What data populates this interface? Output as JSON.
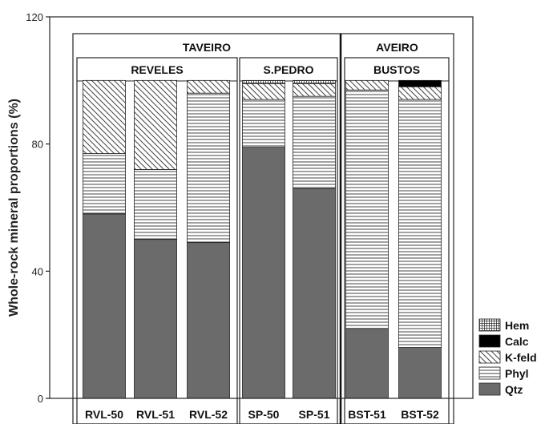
{
  "chart_data": {
    "type": "bar",
    "stacked": true,
    "ylabel": "Whole-rock mineral proportions (%)",
    "ylim": [
      0,
      120
    ],
    "yticks": [
      "0",
      "40",
      "80",
      "120"
    ],
    "grid": false,
    "legend_position": "bottom-right",
    "categories": [
      "RVL-50",
      "RVL-51",
      "RVL-52",
      "SP-50",
      "SP-51",
      "BST-51",
      "BST-52"
    ],
    "series": [
      {
        "name": "Qtz",
        "values": [
          58,
          50,
          49,
          79,
          66,
          22,
          16
        ],
        "color": "#6b6b6b",
        "pattern": "solid"
      },
      {
        "name": "Phyl",
        "values": [
          19,
          22,
          47,
          15,
          29,
          75,
          78
        ],
        "color": "#ffffff",
        "pattern": "horizontal-lines"
      },
      {
        "name": "K-feld",
        "values": [
          23,
          28,
          4,
          5,
          4,
          3,
          4
        ],
        "color": "#ffffff",
        "pattern": "diagonal-lines"
      },
      {
        "name": "Calc",
        "values": [
          0,
          0,
          0,
          0,
          0,
          0,
          2
        ],
        "color": "#000000",
        "pattern": "solid"
      },
      {
        "name": "Hem",
        "values": [
          0,
          0,
          0,
          1,
          1,
          0,
          0
        ],
        "color": "#ffffff",
        "pattern": "grid"
      }
    ],
    "legend_order": [
      "Hem",
      "Calc",
      "K-feld",
      "Phyl",
      "Qtz"
    ],
    "groups": [
      {
        "label": "TAVEIRO",
        "start": 0,
        "end": 4
      },
      {
        "label": "AVEIRO",
        "start": 5,
        "end": 6
      }
    ],
    "subgroups": [
      {
        "label": "REVELES",
        "start": 0,
        "end": 2
      },
      {
        "label": "S.PEDRO",
        "start": 3,
        "end": 4
      },
      {
        "label": "BUSTOS",
        "start": 5,
        "end": 6
      }
    ]
  }
}
